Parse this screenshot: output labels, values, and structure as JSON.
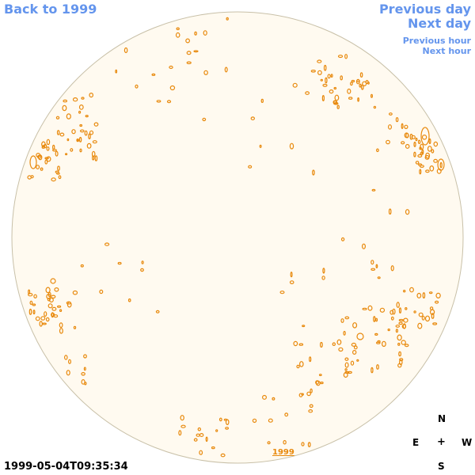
{
  "nav": {
    "back_label": "Back to 1999",
    "prev_day_label": "Previous day",
    "next_day_label": "Next day",
    "prev_hour_label": "Previous hour",
    "next_hour_label": "Next hour"
  },
  "timestamp": "1999-05-04T09:35:34",
  "compass": {
    "n": "N",
    "e": "E",
    "w": "W",
    "s": "S",
    "center": "+"
  },
  "disk_label": "1999",
  "colors": {
    "nav": "#6495ed",
    "disk_fill": "#fffaf0",
    "disk_border": "#c8c0a8",
    "contour": "#e8890c"
  }
}
